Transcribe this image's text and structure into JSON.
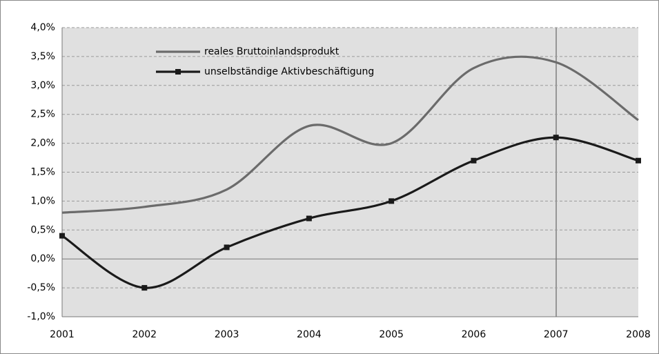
{
  "chart_data": {
    "type": "line",
    "categories": [
      "2001",
      "2002",
      "2003",
      "2004",
      "2005",
      "2006",
      "2007",
      "2008"
    ],
    "series": [
      {
        "name": "reales Bruttoinlandsprodukt",
        "color": "#6b6b6b",
        "marker": false,
        "values": [
          0.8,
          0.9,
          1.2,
          2.3,
          2.0,
          3.3,
          3.4,
          2.4
        ]
      },
      {
        "name": "unselbständige Aktivbeschäftigung",
        "color": "#1a1a1a",
        "marker": true,
        "values": [
          0.4,
          -0.5,
          0.2,
          0.7,
          1.0,
          1.7,
          2.1,
          1.7
        ]
      }
    ],
    "ylim": [
      -1.0,
      4.0
    ],
    "yticks": [
      {
        "value": -1.0,
        "label": "-1,0%"
      },
      {
        "value": -0.5,
        "label": "-0,5%"
      },
      {
        "value": 0.0,
        "label": "0,0%"
      },
      {
        "value": 0.5,
        "label": "0,5%"
      },
      {
        "value": 1.0,
        "label": "1,0%"
      },
      {
        "value": 1.5,
        "label": "1,5%"
      },
      {
        "value": 2.0,
        "label": "2,0%"
      },
      {
        "value": 2.5,
        "label": "2,5%"
      },
      {
        "value": 3.0,
        "label": "3,0%"
      },
      {
        "value": 3.5,
        "label": "3,5%"
      },
      {
        "value": 4.0,
        "label": "4,0%"
      }
    ],
    "grid": true,
    "legend": "top-left"
  }
}
